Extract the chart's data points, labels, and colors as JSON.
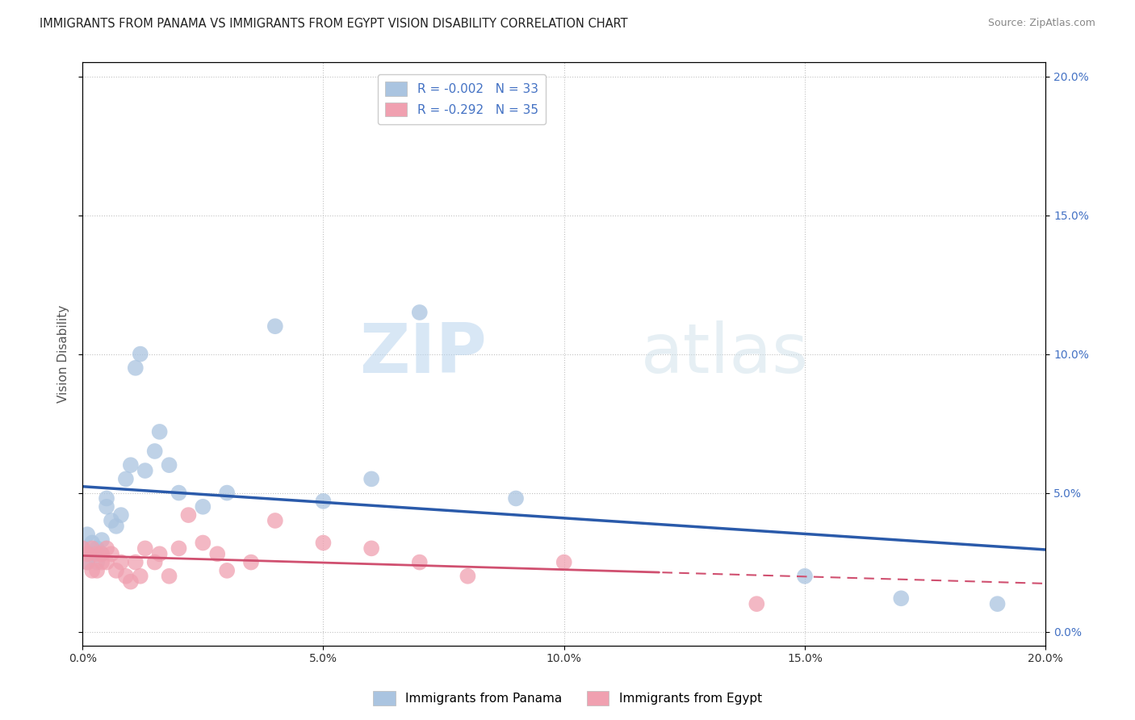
{
  "title": "IMMIGRANTS FROM PANAMA VS IMMIGRANTS FROM EGYPT VISION DISABILITY CORRELATION CHART",
  "source": "Source: ZipAtlas.com",
  "ylabel": "Vision Disability",
  "xlim": [
    0.0,
    0.2
  ],
  "ylim": [
    -0.005,
    0.205
  ],
  "xticks": [
    0.0,
    0.05,
    0.1,
    0.15,
    0.2
  ],
  "yticks": [
    0.0,
    0.05,
    0.1,
    0.15,
    0.2
  ],
  "series": [
    {
      "name": "Immigrants from Panama",
      "R": -0.002,
      "N": 33,
      "color": "#aac4e0",
      "line_color": "#2a5aaa",
      "x": [
        0.0,
        0.001,
        0.001,
        0.002,
        0.002,
        0.003,
        0.003,
        0.004,
        0.004,
        0.005,
        0.005,
        0.006,
        0.007,
        0.008,
        0.009,
        0.01,
        0.011,
        0.012,
        0.013,
        0.015,
        0.016,
        0.018,
        0.02,
        0.025,
        0.03,
        0.04,
        0.05,
        0.06,
        0.07,
        0.09,
        0.15,
        0.17,
        0.19
      ],
      "y": [
        0.03,
        0.025,
        0.035,
        0.028,
        0.032,
        0.03,
        0.025,
        0.028,
        0.033,
        0.045,
        0.048,
        0.04,
        0.038,
        0.042,
        0.055,
        0.06,
        0.095,
        0.1,
        0.058,
        0.065,
        0.072,
        0.06,
        0.05,
        0.045,
        0.05,
        0.11,
        0.047,
        0.055,
        0.115,
        0.048,
        0.02,
        0.012,
        0.01
      ]
    },
    {
      "name": "Immigrants from Egypt",
      "R": -0.292,
      "N": 35,
      "color": "#f0a0b0",
      "line_color": "#d05070",
      "x": [
        0.0,
        0.001,
        0.001,
        0.002,
        0.002,
        0.003,
        0.003,
        0.004,
        0.004,
        0.005,
        0.005,
        0.006,
        0.007,
        0.008,
        0.009,
        0.01,
        0.011,
        0.012,
        0.013,
        0.015,
        0.016,
        0.018,
        0.02,
        0.022,
        0.025,
        0.028,
        0.03,
        0.035,
        0.04,
        0.05,
        0.06,
        0.07,
        0.08,
        0.1,
        0.14
      ],
      "y": [
        0.03,
        0.025,
        0.028,
        0.022,
        0.03,
        0.028,
        0.022,
        0.025,
        0.028,
        0.03,
        0.025,
        0.028,
        0.022,
        0.025,
        0.02,
        0.018,
        0.025,
        0.02,
        0.03,
        0.025,
        0.028,
        0.02,
        0.03,
        0.042,
        0.032,
        0.028,
        0.022,
        0.025,
        0.04,
        0.032,
        0.03,
        0.025,
        0.02,
        0.025,
        0.01
      ]
    }
  ],
  "legend_labels": [
    "Immigrants from Panama",
    "Immigrants from Egypt"
  ],
  "legend_colors": [
    "#aac4e0",
    "#f0a0b0"
  ],
  "watermark_zip": "ZIP",
  "watermark_atlas": "atlas",
  "background_color": "#ffffff",
  "grid_color": "#bbbbbb",
  "title_color": "#222222",
  "axis_label_color": "#555555",
  "right_tick_color": "#4472c4",
  "bottom_tick_color": "#333333",
  "legend_text_color": "#4472c4"
}
